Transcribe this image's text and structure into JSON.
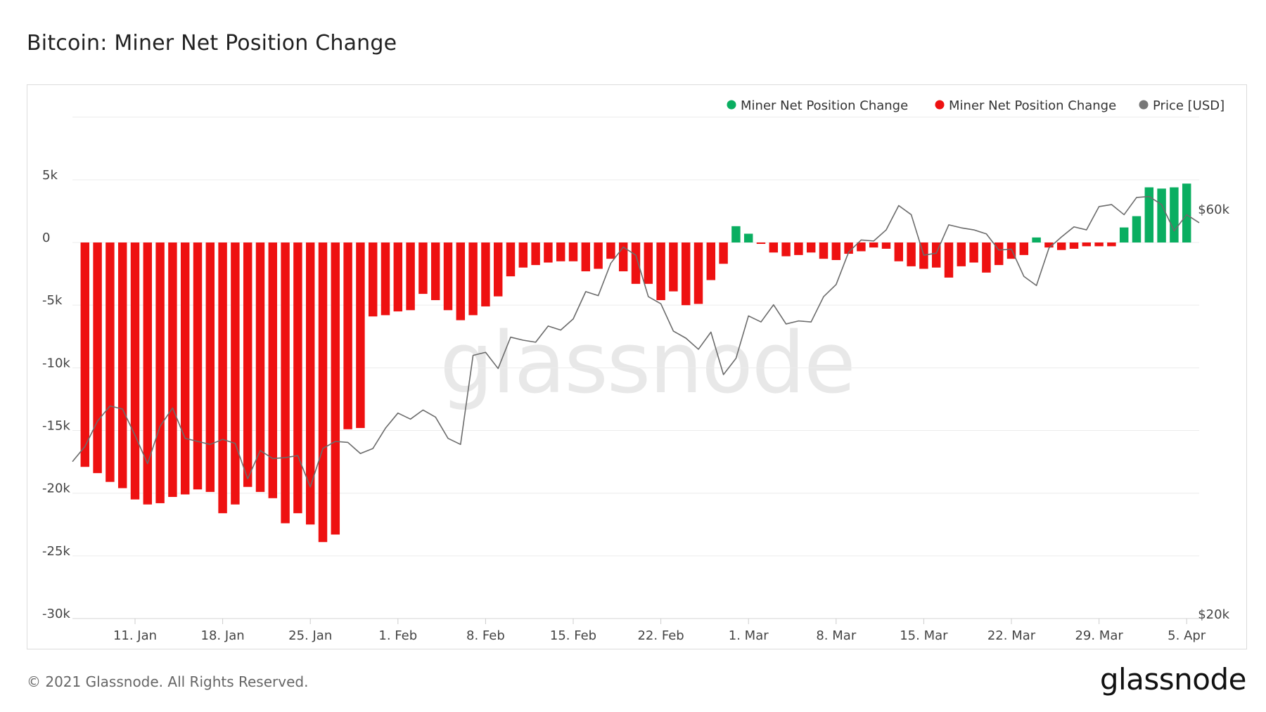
{
  "page": {
    "title": "Bitcoin: Miner Net Position Change",
    "footer": "© 2021 Glassnode. All Rights Reserved.",
    "brand": "glassnode",
    "watermark": "glassnode"
  },
  "chart_data": {
    "type": "bar",
    "title": "Bitcoin: Miner Net Position Change",
    "xlabel": "",
    "ylabel": "",
    "ylim": [
      -30000,
      10000
    ],
    "y2lim": [
      20000,
      80000
    ],
    "y_ticks": [
      {
        "value": 5000,
        "label": "5k"
      },
      {
        "value": 0,
        "label": "0"
      },
      {
        "value": -5000,
        "label": "-5k"
      },
      {
        "value": -10000,
        "label": "-10k"
      },
      {
        "value": -15000,
        "label": "-15k"
      },
      {
        "value": -20000,
        "label": "-20k"
      },
      {
        "value": -25000,
        "label": "-25k"
      },
      {
        "value": -30000,
        "label": "-30k"
      }
    ],
    "y2_ticks": [
      {
        "value": 60000,
        "label": "$60k"
      },
      {
        "value": 20000,
        "label": "$20k"
      }
    ],
    "x_ticks": [
      {
        "date": "2021-01-11",
        "label": "11. Jan"
      },
      {
        "date": "2021-01-18",
        "label": "18. Jan"
      },
      {
        "date": "2021-01-25",
        "label": "25. Jan"
      },
      {
        "date": "2021-02-01",
        "label": "1. Feb"
      },
      {
        "date": "2021-02-08",
        "label": "8. Feb"
      },
      {
        "date": "2021-02-15",
        "label": "15. Feb"
      },
      {
        "date": "2021-02-22",
        "label": "22. Feb"
      },
      {
        "date": "2021-03-01",
        "label": "1. Mar"
      },
      {
        "date": "2021-03-08",
        "label": "8. Mar"
      },
      {
        "date": "2021-03-15",
        "label": "15. Mar"
      },
      {
        "date": "2021-03-22",
        "label": "22. Mar"
      },
      {
        "date": "2021-03-29",
        "label": "29. Mar"
      },
      {
        "date": "2021-04-05",
        "label": "5. Apr"
      }
    ],
    "grid": true,
    "legend_position": "top-right",
    "legend": [
      {
        "label": "Miner Net Position Change",
        "color": "#0aae61"
      },
      {
        "label": "Miner Net Position Change",
        "color": "#ee1111"
      },
      {
        "label": "Price [USD]",
        "color": "#777777"
      }
    ],
    "colors": {
      "positive": "#0aae61",
      "negative": "#ee1111",
      "price": "#6b6b6b"
    },
    "start_date": "2021-01-06",
    "end_date": "2021-04-06",
    "series": [
      {
        "kind": "bar",
        "dates": [
          "2021-01-07",
          "2021-01-08",
          "2021-01-09",
          "2021-01-10",
          "2021-01-11",
          "2021-01-12",
          "2021-01-13",
          "2021-01-14",
          "2021-01-15",
          "2021-01-16",
          "2021-01-17",
          "2021-01-18",
          "2021-01-19",
          "2021-01-20",
          "2021-01-21",
          "2021-01-22",
          "2021-01-23",
          "2021-01-24",
          "2021-01-25",
          "2021-01-26",
          "2021-01-27",
          "2021-01-28",
          "2021-01-29",
          "2021-01-30",
          "2021-01-31",
          "2021-02-01",
          "2021-02-02",
          "2021-02-03",
          "2021-02-04",
          "2021-02-05",
          "2021-02-06",
          "2021-02-07",
          "2021-02-08",
          "2021-02-09",
          "2021-02-10",
          "2021-02-11",
          "2021-02-12",
          "2021-02-13",
          "2021-02-14",
          "2021-02-15",
          "2021-02-16",
          "2021-02-17",
          "2021-02-18",
          "2021-02-19",
          "2021-02-20",
          "2021-02-21",
          "2021-02-22",
          "2021-02-23",
          "2021-02-24",
          "2021-02-25",
          "2021-02-26",
          "2021-02-27",
          "2021-02-28",
          "2021-03-01",
          "2021-03-02",
          "2021-03-03",
          "2021-03-04",
          "2021-03-05",
          "2021-03-06",
          "2021-03-07",
          "2021-03-08",
          "2021-03-09",
          "2021-03-10",
          "2021-03-11",
          "2021-03-12",
          "2021-03-13",
          "2021-03-14",
          "2021-03-15",
          "2021-03-16",
          "2021-03-17",
          "2021-03-18",
          "2021-03-19",
          "2021-03-20",
          "2021-03-21",
          "2021-03-22",
          "2021-03-23",
          "2021-03-24",
          "2021-03-25",
          "2021-03-26",
          "2021-03-27",
          "2021-03-28",
          "2021-03-29",
          "2021-03-30",
          "2021-03-31",
          "2021-04-01",
          "2021-04-02",
          "2021-04-03",
          "2021-04-04",
          "2021-04-05"
        ],
        "values": [
          -17900,
          -18400,
          -19100,
          -19600,
          -20500,
          -20900,
          -20800,
          -20300,
          -20100,
          -19700,
          -19900,
          -21600,
          -20900,
          -19500,
          -19900,
          -20400,
          -22400,
          -21600,
          -22500,
          -23900,
          -23300,
          -14900,
          -14800,
          -5900,
          -5800,
          -5500,
          -5400,
          -4100,
          -4600,
          -5400,
          -6200,
          -5800,
          -5100,
          -4300,
          -2700,
          -2000,
          -1800,
          -1600,
          -1500,
          -1500,
          -2300,
          -2100,
          -1300,
          -2300,
          -3300,
          -3300,
          -4600,
          -3900,
          -5000,
          -4900,
          -3000,
          -1700,
          1300,
          700,
          -100,
          -800,
          -1100,
          -1000,
          -800,
          -1300,
          -1400,
          -900,
          -700,
          -400,
          -500,
          -1500,
          -1900,
          -2100,
          -2000,
          -2800,
          -1900,
          -1600,
          -2400,
          -1800,
          -1300,
          -1000,
          400,
          -400,
          -600,
          -500,
          -300,
          -300,
          -300,
          1200,
          2100,
          4400,
          4300,
          4400,
          4700
        ]
      },
      {
        "kind": "line",
        "name": "Price [USD]",
        "dates": [
          "2021-01-06",
          "2021-01-07",
          "2021-01-08",
          "2021-01-09",
          "2021-01-10",
          "2021-01-11",
          "2021-01-12",
          "2021-01-13",
          "2021-01-14",
          "2021-01-15",
          "2021-01-16",
          "2021-01-17",
          "2021-01-18",
          "2021-01-19",
          "2021-01-20",
          "2021-01-21",
          "2021-01-22",
          "2021-01-23",
          "2021-01-24",
          "2021-01-25",
          "2021-01-26",
          "2021-01-27",
          "2021-01-28",
          "2021-01-29",
          "2021-01-30",
          "2021-01-31",
          "2021-02-01",
          "2021-02-02",
          "2021-02-03",
          "2021-02-04",
          "2021-02-05",
          "2021-02-06",
          "2021-02-07",
          "2021-02-08",
          "2021-02-09",
          "2021-02-10",
          "2021-02-11",
          "2021-02-12",
          "2021-02-13",
          "2021-02-14",
          "2021-02-15",
          "2021-02-16",
          "2021-02-17",
          "2021-02-18",
          "2021-02-19",
          "2021-02-20",
          "2021-02-21",
          "2021-02-22",
          "2021-02-23",
          "2021-02-24",
          "2021-02-25",
          "2021-02-26",
          "2021-02-27",
          "2021-02-28",
          "2021-03-01",
          "2021-03-02",
          "2021-03-03",
          "2021-03-04",
          "2021-03-05",
          "2021-03-06",
          "2021-03-07",
          "2021-03-08",
          "2021-03-09",
          "2021-03-10",
          "2021-03-11",
          "2021-03-12",
          "2021-03-13",
          "2021-03-14",
          "2021-03-15",
          "2021-03-16",
          "2021-03-17",
          "2021-03-18",
          "2021-03-19",
          "2021-03-20",
          "2021-03-21",
          "2021-03-22",
          "2021-03-23",
          "2021-03-24",
          "2021-03-25",
          "2021-03-26",
          "2021-03-27",
          "2021-03-28",
          "2021-03-29",
          "2021-03-30",
          "2021-03-31",
          "2021-04-01",
          "2021-04-02",
          "2021-04-03",
          "2021-04-04",
          "2021-04-05",
          "2021-04-06"
        ],
        "values": [
          35500,
          37000,
          39500,
          41000,
          40700,
          38100,
          35300,
          39000,
          40800,
          37800,
          37500,
          37200,
          37700,
          37300,
          33800,
          36600,
          35800,
          35900,
          36100,
          33000,
          36800,
          37500,
          37400,
          36300,
          36800,
          38800,
          40300,
          39700,
          40600,
          39900,
          37800,
          37200,
          46000,
          46300,
          44700,
          47800,
          47500,
          47300,
          48900,
          48500,
          49600,
          52300,
          51900,
          55100,
          56700,
          55900,
          51800,
          51100,
          48400,
          47700,
          46600,
          48300,
          44100,
          45700,
          49900,
          49300,
          51000,
          49100,
          49400,
          49300,
          51800,
          53000,
          56200,
          57400,
          57300,
          58400,
          60800,
          59900,
          55900,
          56100,
          58900,
          58600,
          58400,
          58000,
          56400,
          56500,
          53800,
          52900,
          56600,
          57700,
          58700,
          58400,
          60700,
          60900,
          59900,
          61600,
          61700,
          60900,
          58300,
          59900,
          59100
        ]
      }
    ]
  }
}
